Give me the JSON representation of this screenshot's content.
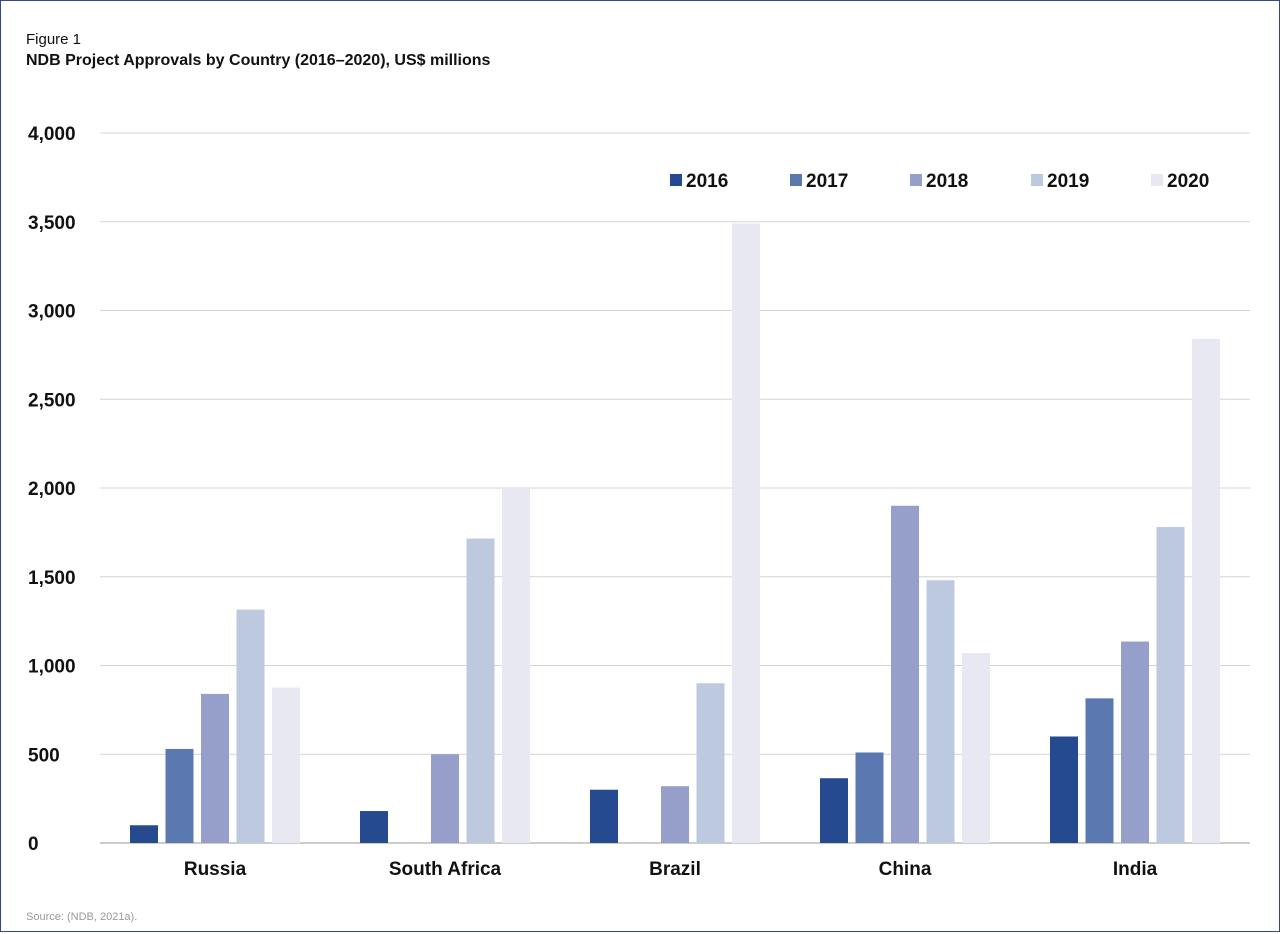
{
  "figure": {
    "label": "Figure 1",
    "title": "NDB Project Approvals by Country (2016–2020), US$ millions",
    "source": "Source: (NDB, 2021a)."
  },
  "chart_data": {
    "type": "bar",
    "title": "NDB Project Approvals by Country (2016–2020), US$ millions",
    "xlabel": "",
    "ylabel": "",
    "ylim": [
      0,
      4000
    ],
    "yticks": [
      0,
      500,
      1000,
      1500,
      2000,
      2500,
      3000,
      3500,
      4000
    ],
    "ytick_labels": [
      "0",
      "500",
      "1,000",
      "1,500",
      "2,000",
      "2,500",
      "3,000",
      "3,500",
      "4,000"
    ],
    "grid": true,
    "legend_position": "top-right",
    "categories": [
      "Russia",
      "South Africa",
      "Brazil",
      "China",
      "India"
    ],
    "series": [
      {
        "name": "2016",
        "color": "#264a8f",
        "values": [
          100,
          180,
          300,
          365,
          600
        ]
      },
      {
        "name": "2017",
        "color": "#5b78b0",
        "values": [
          530,
          0,
          0,
          510,
          815
        ]
      },
      {
        "name": "2018",
        "color": "#969fca",
        "values": [
          840,
          500,
          320,
          1900,
          1135
        ]
      },
      {
        "name": "2019",
        "color": "#bdc9de",
        "values": [
          1315,
          1715,
          900,
          1480,
          1780
        ]
      },
      {
        "name": "2020",
        "color": "#e7e8f2",
        "values": [
          875,
          2000,
          3490,
          1070,
          2840
        ]
      }
    ]
  }
}
